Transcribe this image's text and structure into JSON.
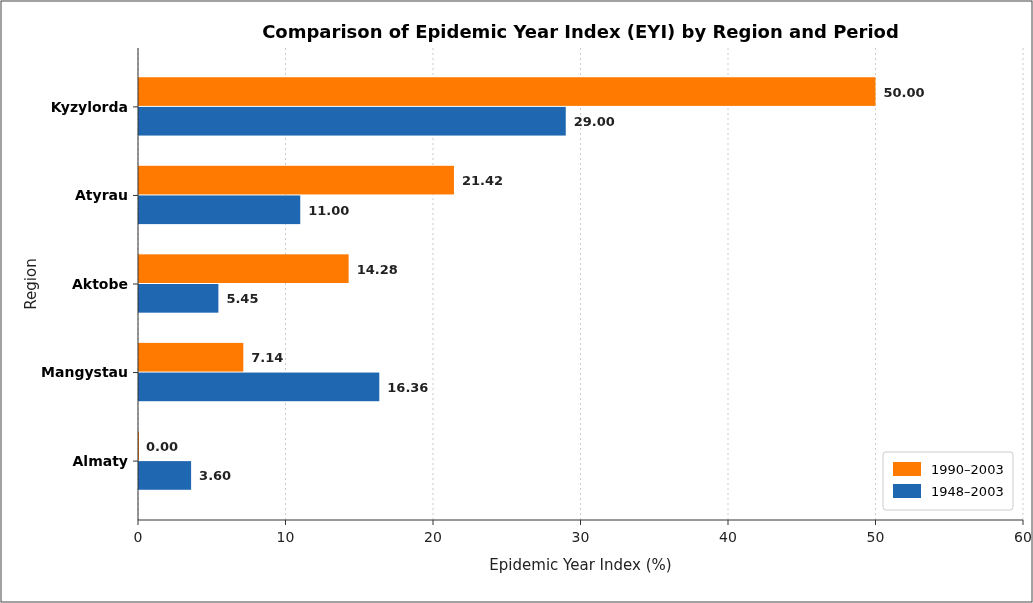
{
  "chart_data": {
    "type": "bar",
    "orientation": "horizontal",
    "title": "Comparison of Epidemic Year Index (EYI) by Region and Period",
    "xlabel": "Epidemic Year Index (%)",
    "ylabel": "Region",
    "categories": [
      "Kyzylorda",
      "Atyrau",
      "Aktobe",
      "Mangystau",
      "Almaty"
    ],
    "series": [
      {
        "name": "1990–2003",
        "color": "#ff7a00",
        "values": [
          50,
          21.42,
          14.28,
          7.14,
          0
        ],
        "value_labels": [
          "50.00",
          "21.42",
          "14.28",
          "7.14",
          "0.00"
        ]
      },
      {
        "name": "1948–2003",
        "color": "#1f67b1",
        "values": [
          29,
          11,
          5.45,
          16.36,
          3.6
        ],
        "value_labels": [
          "29.00",
          "11.00",
          "5.45",
          "16.36",
          "3.60"
        ]
      }
    ],
    "xlim": [
      0,
      60
    ],
    "xticks": [
      0,
      10,
      20,
      30,
      40,
      50,
      60
    ],
    "grid": "x",
    "legend": "bottom right"
  }
}
